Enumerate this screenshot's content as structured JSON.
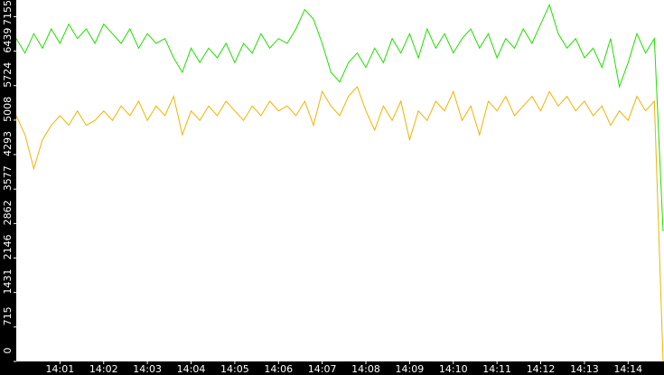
{
  "chart_data": {
    "type": "line",
    "x": [
      0,
      0.2,
      0.4,
      0.6,
      0.8,
      1,
      1.2,
      1.4,
      1.6,
      1.8,
      2,
      2.2,
      2.4,
      2.6,
      2.8,
      3,
      3.2,
      3.4,
      3.6,
      3.8,
      4,
      4.2,
      4.4,
      4.6,
      4.8,
      5,
      5.2,
      5.4,
      5.6,
      5.8,
      6,
      6.2,
      6.4,
      6.6,
      6.8,
      7,
      7.2,
      7.4,
      7.6,
      7.8,
      8,
      8.2,
      8.4,
      8.6,
      8.8,
      9,
      9.2,
      9.4,
      9.6,
      9.8,
      10,
      10.2,
      10.4,
      10.6,
      10.8,
      11,
      11.2,
      11.4,
      11.6,
      11.8,
      12,
      12.2,
      12.4,
      12.6,
      12.8,
      13,
      13.2,
      13.4,
      13.6,
      13.8,
      14,
      14.2,
      14.4,
      14.6,
      14.8
    ],
    "series": [
      {
        "color": "#22dd00",
        "values": [
          6700,
          6400,
          6800,
          6500,
          6900,
          6600,
          7000,
          6700,
          6900,
          6600,
          7000,
          6800,
          6600,
          6900,
          6500,
          6800,
          6600,
          6700,
          6300,
          6000,
          6500,
          6200,
          6500,
          6300,
          6600,
          6200,
          6600,
          6400,
          6800,
          6500,
          6700,
          6600,
          6900,
          7300,
          7100,
          6600,
          6000,
          5800,
          6200,
          6400,
          6100,
          6500,
          6200,
          6700,
          6400,
          6800,
          6300,
          6900,
          6500,
          6800,
          6400,
          6700,
          6900,
          6500,
          6800,
          6300,
          6700,
          6500,
          6900,
          6600,
          7000,
          7400,
          6800,
          6500,
          6700,
          6300,
          6500,
          6100,
          6700,
          5700,
          6200,
          6800,
          6400,
          6700,
          2700
        ]
      },
      {
        "color": "#f0b400",
        "values": [
          5100,
          4700,
          4000,
          4600,
          4900,
          5100,
          4900,
          5200,
          4900,
          5000,
          5200,
          5000,
          5300,
          5100,
          5400,
          5000,
          5300,
          5100,
          5500,
          4700,
          5200,
          5000,
          5300,
          5100,
          5400,
          5200,
          5000,
          5300,
          5100,
          5400,
          5200,
          5300,
          5100,
          5400,
          4900,
          5600,
          5300,
          5100,
          5500,
          5700,
          5200,
          4800,
          5300,
          5000,
          5400,
          4600,
          5200,
          5000,
          5400,
          5200,
          5600,
          5000,
          5300,
          4700,
          5400,
          5200,
          5500,
          5100,
          5300,
          5500,
          5200,
          5600,
          5300,
          5500,
          5200,
          5400,
          5100,
          5300,
          4900,
          5200,
          5000,
          5500,
          5200,
          5400,
          0
        ]
      }
    ],
    "xlim": [
      0,
      14.8
    ],
    "xticks": [
      {
        "value": 1,
        "label": "14:01"
      },
      {
        "value": 2,
        "label": "14:02"
      },
      {
        "value": 3,
        "label": "14:03"
      },
      {
        "value": 4,
        "label": "14:04"
      },
      {
        "value": 5,
        "label": "14:05"
      },
      {
        "value": 6,
        "label": "14:06"
      },
      {
        "value": 7,
        "label": "14:07"
      },
      {
        "value": 8,
        "label": "14:08"
      },
      {
        "value": 9,
        "label": "14:09"
      },
      {
        "value": 10,
        "label": "14:10"
      },
      {
        "value": 11,
        "label": "14:11"
      },
      {
        "value": 12,
        "label": "14:12"
      },
      {
        "value": 13,
        "label": "14:13"
      },
      {
        "value": 14,
        "label": "14:14"
      }
    ],
    "ylim": [
      0,
      7500
    ],
    "yticks": [
      0,
      715,
      1431,
      2146,
      2862,
      3577,
      4293,
      5008,
      5724,
      6439,
      7155
    ],
    "grid": false
  }
}
